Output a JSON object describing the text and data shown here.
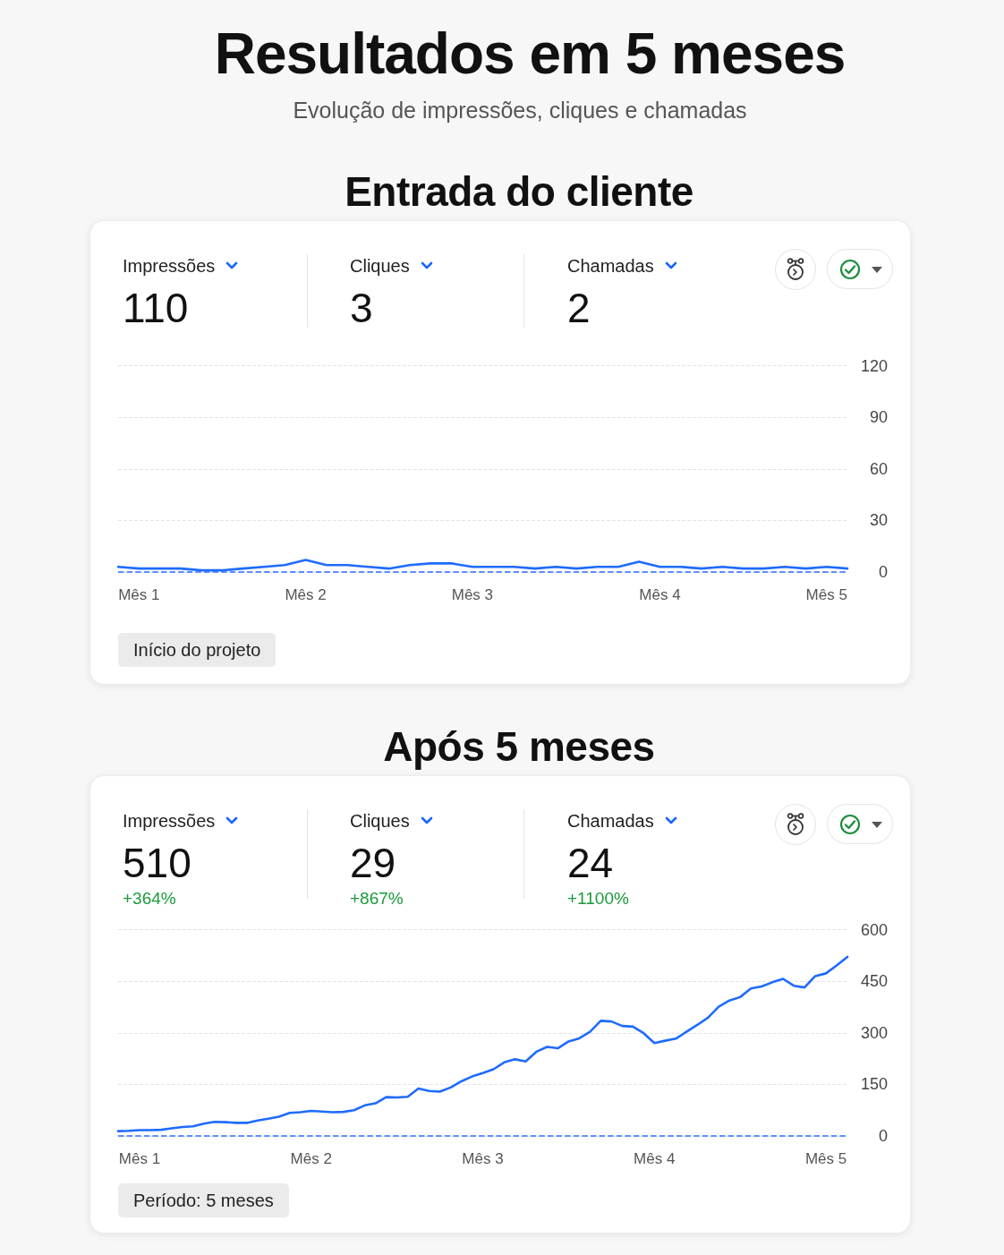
{
  "chart_data": [
    {
      "type": "other",
      "title": "Resultados em 5 meses",
      "subtitle": "Evolução de impressões, cliques e chamadas"
    },
    {
      "type": "line",
      "title": "Entrada do cliente",
      "annotations": [
        "Impressões",
        "110",
        "Cliques",
        "3",
        "Chamadas",
        "2",
        "Início do projeto"
      ],
      "categories": [
        null,
        "Mês 1",
        null,
        null,
        null,
        null,
        null,
        null,
        null,
        "Mês 2",
        null,
        null,
        null,
        null,
        null,
        null,
        null,
        "Mês 3",
        null,
        null,
        null,
        null,
        null,
        null,
        null,
        null,
        "Mês 4",
        null,
        null,
        null,
        null,
        null,
        null,
        null,
        "Mês 5",
        null
      ],
      "series": [
        {
          "color": "#1f6bff",
          "values": [
            3,
            2,
            2,
            2,
            1,
            1,
            2,
            3,
            4,
            7,
            4,
            4,
            3,
            2,
            4,
            5,
            5,
            3,
            3,
            3,
            2,
            3,
            2,
            3,
            3,
            6,
            3,
            3,
            2,
            3,
            2,
            2,
            3,
            2,
            3,
            2
          ]
        }
      ],
      "ylim": [
        0,
        120
      ],
      "yticks": [
        0,
        30,
        60,
        90,
        120
      ],
      "grid": "y",
      "marker": "none",
      "line_style": "solid",
      "ref_lines": [
        {
          "axis": "y",
          "value": 0,
          "color": "#2f6bff",
          "line_style": "dashed"
        }
      ]
    },
    {
      "type": "line",
      "title": "Após 5 meses",
      "annotations": [
        "Impressões",
        "510",
        "+364%",
        "Cliques",
        "29",
        "+867%",
        "Chamadas",
        "24",
        "+1100%",
        "Período: 5 meses"
      ],
      "categories": [
        null,
        null,
        "Mês 1",
        null,
        null,
        null,
        null,
        null,
        null,
        null,
        null,
        null,
        null,
        null,
        null,
        null,
        null,
        null,
        "Mês 2",
        null,
        null,
        null,
        null,
        null,
        null,
        null,
        null,
        null,
        null,
        null,
        null,
        null,
        null,
        null,
        "Mês 3",
        null,
        null,
        null,
        null,
        null,
        null,
        null,
        null,
        null,
        null,
        null,
        null,
        null,
        null,
        null,
        "Mês 4",
        null,
        null,
        null,
        null,
        null,
        null,
        null,
        null,
        null,
        null,
        null,
        null,
        null,
        null,
        null,
        "Mês 5",
        null,
        null
      ],
      "series": [
        {
          "color": "#1f6bff",
          "values": [
            14,
            15,
            17,
            17,
            18,
            22,
            26,
            28,
            36,
            41,
            40,
            38,
            38,
            45,
            50,
            56,
            67,
            69,
            73,
            71,
            69,
            70,
            75,
            89,
            95,
            113,
            112,
            114,
            138,
            131,
            129,
            141,
            159,
            173,
            183,
            194,
            214,
            223,
            217,
            245,
            259,
            255,
            275,
            284,
            303,
            335,
            333,
            320,
            318,
            299,
            270,
            277,
            283,
            303,
            323,
            344,
            376,
            394,
            404,
            429,
            435,
            447,
            457,
            437,
            432,
            465,
            473,
            496,
            521
          ]
        }
      ],
      "ylim": [
        0,
        600
      ],
      "yticks": [
        0,
        150,
        300,
        450,
        600
      ],
      "grid": "y",
      "marker": "none",
      "line_style": "solid",
      "ref_lines": [
        {
          "axis": "y",
          "value": 0,
          "color": "#2f6bff",
          "line_style": "dashed"
        }
      ]
    }
  ]
}
